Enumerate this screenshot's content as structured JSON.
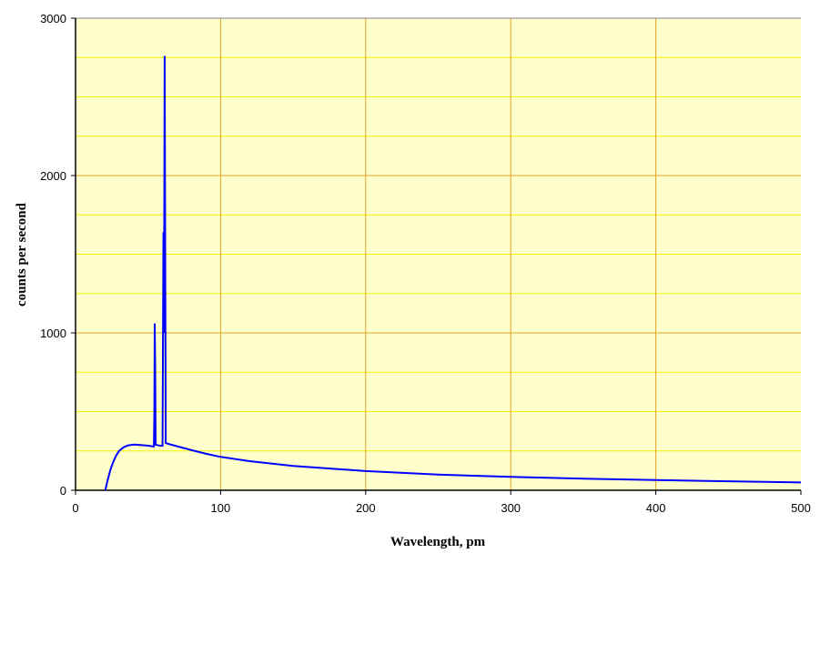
{
  "chart_data": {
    "type": "line",
    "title": "",
    "xlabel": "Wavelength, pm",
    "ylabel": "counts per second",
    "xlim": [
      0,
      500
    ],
    "ylim": [
      0,
      3000
    ],
    "xticks": [
      0,
      100,
      200,
      300,
      400,
      500
    ],
    "yticks": [
      0,
      1000,
      2000,
      3000
    ],
    "y_minor_step": 250,
    "grid": true,
    "legend": "none",
    "colors": {
      "plot_bg": "#ffffcc",
      "major_grid": "#e0a020",
      "minor_grid": "#f0f000",
      "series": "#0000ff"
    },
    "series": [
      {
        "points": [
          [
            20.5,
            0
          ],
          [
            22,
            60
          ],
          [
            24,
            130
          ],
          [
            26,
            180
          ],
          [
            28,
            220
          ],
          [
            30,
            250
          ],
          [
            33,
            272
          ],
          [
            36,
            285
          ],
          [
            40,
            290
          ],
          [
            45,
            288
          ],
          [
            50,
            283
          ],
          [
            54,
            278
          ],
          [
            54.3,
            500
          ],
          [
            54.6,
            1060
          ],
          [
            54.9,
            800
          ],
          [
            55.2,
            290
          ],
          [
            57,
            285
          ],
          [
            60,
            282
          ],
          [
            60.6,
            1640
          ],
          [
            61,
            1000
          ],
          [
            61.4,
            2760
          ],
          [
            61.8,
            1600
          ],
          [
            62.2,
            300
          ],
          [
            65,
            292
          ],
          [
            70,
            280
          ],
          [
            80,
            255
          ],
          [
            90,
            232
          ],
          [
            100,
            212
          ],
          [
            120,
            185
          ],
          [
            150,
            155
          ],
          [
            200,
            122
          ],
          [
            250,
            100
          ],
          [
            300,
            85
          ],
          [
            350,
            74
          ],
          [
            400,
            65
          ],
          [
            450,
            57
          ],
          [
            500,
            50
          ]
        ]
      }
    ]
  }
}
